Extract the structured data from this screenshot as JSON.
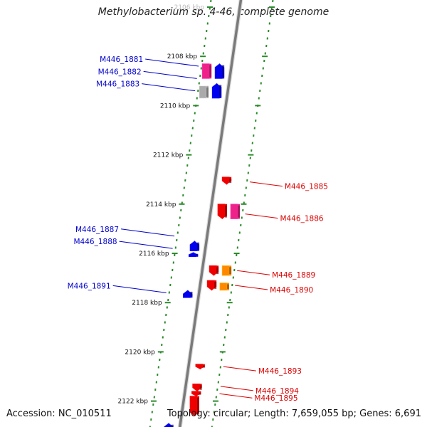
{
  "title": "Methylobacterium sp. 4-46, complete genome",
  "footer": {
    "accession": "Accession: NC_010511",
    "summary": "Topology: circular; Length: 7,659,055 bp; Genes: 6,691"
  },
  "scale_unit": "kbp",
  "ticks": [
    {
      "label": "2106 kbp",
      "kbp": 2106,
      "faded": true
    },
    {
      "label": "2108 kbp",
      "kbp": 2108
    },
    {
      "label": "2110 kbp",
      "kbp": 2110
    },
    {
      "label": "2112 kbp",
      "kbp": 2112
    },
    {
      "label": "2114 kbp",
      "kbp": 2114
    },
    {
      "label": "2116 kbp",
      "kbp": 2116
    },
    {
      "label": "2118 kbp",
      "kbp": 2118
    },
    {
      "label": "2120 kbp",
      "kbp": 2120
    },
    {
      "label": "2122 kbp",
      "kbp": 2122
    }
  ],
  "colors": {
    "backbone": "#7a7a7a",
    "tick": "#2a8a2a",
    "forward_label": "#0000cc",
    "reverse_label": "#dd0000",
    "cds": "#0000ee",
    "cds_reverse": "#ee0000",
    "rna": "#ee2288",
    "pseudo": "#aaaaaa",
    "other": "#ff8800"
  },
  "genes": [
    {
      "id": "M446_1881",
      "strand": "forward",
      "type": "rna",
      "start": 2108.3,
      "end": 2108.9
    },
    {
      "id": "M446_1882",
      "strand": "forward",
      "type": "cds",
      "start": 2108.3,
      "end": 2108.9
    },
    {
      "id": "M446_1883",
      "strand": "forward",
      "type": "pseudo",
      "start": 2109.2,
      "end": 2109.7
    },
    {
      "id": "M446_1884",
      "strand": "forward",
      "type": "cds",
      "start": 2109.1,
      "end": 2109.7
    },
    {
      "id": "M446_1885",
      "strand": "reverse",
      "type": "cds",
      "start": 2112.9,
      "end": 2113.2
    },
    {
      "id": "M446_1886",
      "strand": "reverse",
      "type": "cds",
      "start": 2114.0,
      "end": 2114.6
    },
    {
      "id": "M446_1886b",
      "strand": "reverse",
      "type": "rna",
      "start": 2114.0,
      "end": 2114.6
    },
    {
      "id": "M446_1887",
      "strand": "forward",
      "type": "cds",
      "start": 2115.5,
      "end": 2115.9
    },
    {
      "id": "M446_1888",
      "strand": "forward",
      "type": "cds",
      "start": 2116.0,
      "end": 2116.1
    },
    {
      "id": "M446_1889",
      "strand": "reverse",
      "type": "cds",
      "start": 2116.5,
      "end": 2116.9
    },
    {
      "id": "M446_1889b",
      "strand": "reverse",
      "type": "other",
      "start": 2116.5,
      "end": 2116.9
    },
    {
      "id": "M446_1890",
      "strand": "reverse",
      "type": "cds",
      "start": 2117.1,
      "end": 2117.5
    },
    {
      "id": "M446_1890b",
      "strand": "reverse",
      "type": "other",
      "start": 2117.2,
      "end": 2117.5
    },
    {
      "id": "M446_1891",
      "strand": "forward",
      "type": "cds",
      "start": 2117.5,
      "end": 2117.8
    },
    {
      "id": "M446_1893",
      "strand": "reverse",
      "type": "cds",
      "start": 2120.5,
      "end": 2120.7
    },
    {
      "id": "M446_1894",
      "strand": "reverse",
      "type": "cds",
      "start": 2121.3,
      "end": 2121.6
    },
    {
      "id": "M446_1895",
      "strand": "reverse",
      "type": "cds",
      "start": 2121.6,
      "end": 2121.8
    },
    {
      "id": "M446_1896",
      "strand": "reverse",
      "type": "cds",
      "start": 2121.8,
      "end": 2122.6
    },
    {
      "id": "M446_1897",
      "strand": "forward",
      "type": "cds",
      "start": 2122.9,
      "end": 2123.2
    }
  ],
  "gene_labels": [
    {
      "text": "M446_1881",
      "strand": "forward",
      "at": 2108.4
    },
    {
      "text": "M446_1882",
      "strand": "forward",
      "at": 2108.9
    },
    {
      "text": "M446_1883",
      "strand": "forward",
      "at": 2109.4
    },
    {
      "text": "M446_1885",
      "strand": "reverse",
      "at": 2113.1
    },
    {
      "text": "M446_1886",
      "strand": "reverse",
      "at": 2114.4
    },
    {
      "text": "M446_1887",
      "strand": "forward",
      "at": 2115.3
    },
    {
      "text": "M446_1888",
      "strand": "forward",
      "at": 2115.8
    },
    {
      "text": "M446_1889",
      "strand": "reverse",
      "at": 2116.7
    },
    {
      "text": "M446_1890",
      "strand": "reverse",
      "at": 2117.3
    },
    {
      "text": "M446_1891",
      "strand": "forward",
      "at": 2117.6
    },
    {
      "text": "M446_1893",
      "strand": "reverse",
      "at": 2120.6
    },
    {
      "text": "M446_1894",
      "strand": "reverse",
      "at": 2121.4
    },
    {
      "text": "M446_1895",
      "strand": "reverse",
      "at": 2121.7
    }
  ]
}
